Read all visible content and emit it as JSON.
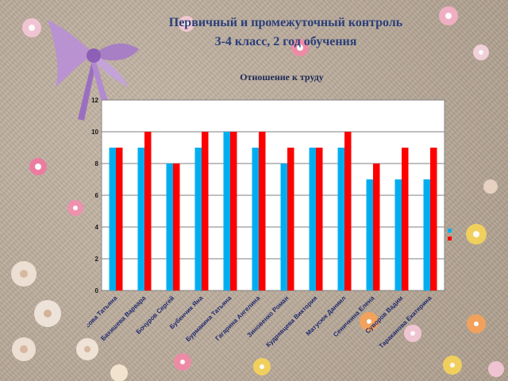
{
  "header": {
    "title_line1": "Первичный и промежуточный контроль",
    "title_line2": "3-4 класс,  2 год обучения"
  },
  "colors": {
    "series1": "#00aeef",
    "series2": "#ff0000",
    "plot_bg": "#ffffff",
    "grid": "#7f7f7f",
    "title": "#2a3f7a"
  },
  "chart_data": {
    "type": "bar",
    "title": "Отношение к труду",
    "xlabel": "",
    "ylabel": "",
    "ylim": [
      0,
      12
    ],
    "yticks": [
      0,
      2,
      4,
      6,
      8,
      10,
      12
    ],
    "grid": true,
    "legend": "right",
    "categories": [
      "Абасова Татьяна",
      "Бахишева Варвара",
      "Бочуров Сергей",
      "Бубенчик Яна",
      "Бурмакина Татьяна",
      "Гагарина Ангелина",
      "Зиновенко Роман",
      "Кудрявцева Виктория",
      "Матусюк Даниил",
      "Сеничкина Елена",
      "Суворов Вадим",
      "Тараканова Екатерина"
    ],
    "series": [
      {
        "values": [
          9,
          9,
          8,
          9,
          10,
          9,
          8,
          9,
          9,
          7,
          7,
          7
        ]
      },
      {
        "values": [
          9,
          10,
          8,
          10,
          10,
          10,
          9,
          9,
          10,
          8,
          9,
          9
        ]
      }
    ]
  }
}
